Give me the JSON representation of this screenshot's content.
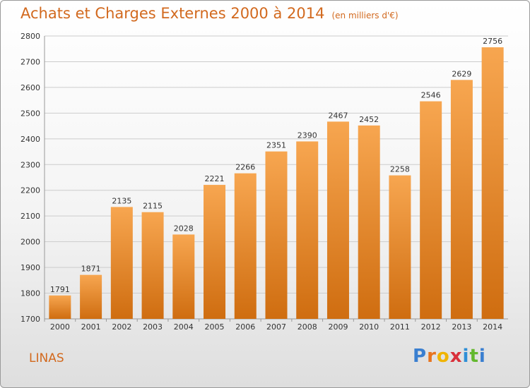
{
  "header": {
    "title": "Achats et Charges Externes 2000 à 2014",
    "subtitle": "(en milliers d'€)"
  },
  "footer": {
    "place": "LINAS",
    "logo_letters": [
      "P",
      "r",
      "o",
      "x",
      "i",
      "t",
      "i"
    ],
    "logo_colors": [
      "#3a7fd0",
      "#e8741e",
      "#f0b400",
      "#d9303a",
      "#2f8fd6",
      "#64b82e",
      "#3a7fd0"
    ]
  },
  "colors": {
    "bar_top": "#f7a650",
    "bar_bottom": "#cf6d10",
    "text": "#d2691e",
    "grid": "#cccccc"
  },
  "chart_data": {
    "type": "bar",
    "categories": [
      "2000",
      "2001",
      "2002",
      "2003",
      "2004",
      "2005",
      "2006",
      "2007",
      "2008",
      "2009",
      "2010",
      "2011",
      "2012",
      "2013",
      "2014"
    ],
    "values": [
      1791,
      1871,
      2135,
      2115,
      2028,
      2221,
      2266,
      2351,
      2390,
      2467,
      2452,
      2258,
      2546,
      2629,
      2756
    ],
    "title": "Achats et Charges Externes 2000 à 2014",
    "xlabel": "",
    "ylabel": "",
    "ylim": [
      1700,
      2800
    ],
    "yticks": [
      1700,
      1800,
      1900,
      2000,
      2100,
      2200,
      2300,
      2400,
      2500,
      2600,
      2700,
      2800
    ],
    "grid": true,
    "legend": "none"
  }
}
